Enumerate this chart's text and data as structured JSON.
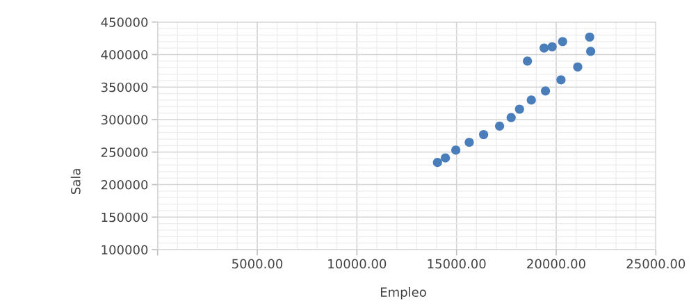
{
  "chart_data": {
    "type": "scatter",
    "xlabel": "Empleo",
    "ylabel": "Sala",
    "x": [
      14043,
      14440,
      14963,
      15637,
      16358,
      17160,
      17740,
      18159,
      18752,
      19462,
      20240,
      21080,
      21730,
      21680,
      20321,
      19798,
      19393,
      18556
    ],
    "series": [
      {
        "color": "#4a7ebb",
        "values": [
          234000,
          241000,
          253000,
          265000,
          277000,
          290000,
          303000,
          316000,
          330000,
          344000,
          361000,
          381000,
          405000,
          427000,
          420000,
          412000,
          410000,
          390000
        ]
      }
    ],
    "xlim": [
      0,
      25000
    ],
    "xticks": [
      {
        "value": 0,
        "label": null
      },
      {
        "value": 5000,
        "label": "5000.00"
      },
      {
        "value": 10000,
        "label": "10000.00"
      },
      {
        "value": 15000,
        "label": "15000.00"
      },
      {
        "value": 20000,
        "label": "20000.00"
      },
      {
        "value": 25000,
        "label": "25000.00"
      }
    ],
    "ylim": [
      100000,
      450000
    ],
    "yticks": [
      100000,
      150000,
      200000,
      250000,
      300000,
      350000,
      400000,
      450000
    ],
    "grid": true,
    "marker": "circle"
  }
}
